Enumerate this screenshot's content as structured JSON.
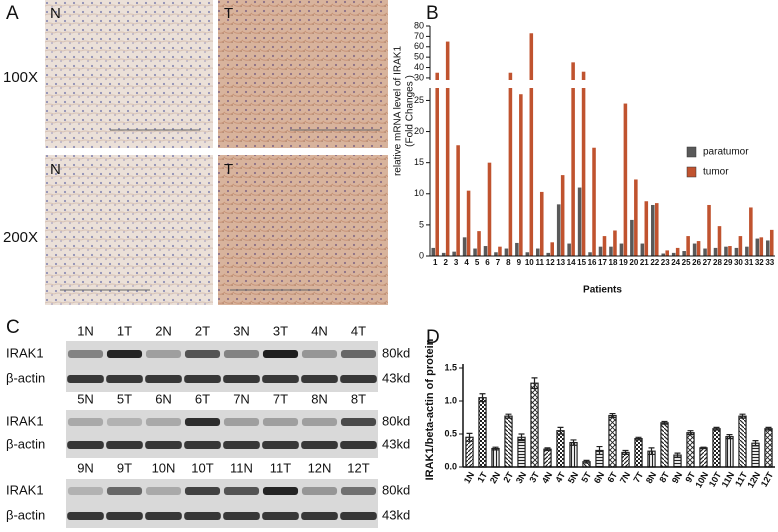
{
  "panel_labels": [
    "A",
    "B",
    "C",
    "D"
  ],
  "histology": {
    "rows": [
      {
        "label": "100X",
        "images": [
          "N",
          "T"
        ]
      },
      {
        "label": "200X",
        "images": [
          "N",
          "T"
        ]
      }
    ]
  },
  "western_blot": {
    "bands": [
      {
        "label": "IRAK1",
        "size": "80kd"
      },
      {
        "label": "β-actin",
        "size": "43kd"
      }
    ],
    "rows": [
      [
        "1N",
        "1T",
        "2N",
        "2T",
        "3N",
        "3T",
        "4N",
        "4T"
      ],
      [
        "5N",
        "5T",
        "6N",
        "6T",
        "7N",
        "7T",
        "8N",
        "8T"
      ],
      [
        "9N",
        "9T",
        "10N",
        "10T",
        "11N",
        "11T",
        "12N",
        "12T"
      ]
    ]
  },
  "chart_data": [
    {
      "type": "bar",
      "xlabel": "Patients",
      "ylabel": [
        "relative mRNA level of IRAK1",
        "(Fold Changes )"
      ],
      "categories": [
        "1",
        "2",
        "3",
        "4",
        "5",
        "6",
        "7",
        "8",
        "9",
        "10",
        "11",
        "12",
        "13",
        "14",
        "15",
        "16",
        "17",
        "18",
        "19",
        "20",
        "21",
        "22",
        "23",
        "24",
        "25",
        "26",
        "27",
        "28",
        "29",
        "30",
        "31",
        "32",
        "33"
      ],
      "series": [
        {
          "name": "paratumor",
          "color": "#595959",
          "values": [
            1.3,
            0.5,
            0.7,
            3.0,
            1.2,
            1.6,
            0.6,
            1.2,
            2.1,
            0.6,
            1.2,
            0.5,
            8.3,
            2.0,
            11.0,
            0.6,
            1.5,
            1.5,
            2.0,
            5.8,
            2.0,
            8.2,
            0.4,
            0.5,
            0.8,
            2.0,
            1.2,
            1.3,
            1.5,
            1.3,
            1.5,
            2.8,
            2.5
          ]
        },
        {
          "name": "tumor",
          "color": "#c0532f",
          "values": [
            35,
            65,
            17.8,
            10.5,
            4.0,
            15.0,
            1.5,
            35,
            26,
            73,
            10.3,
            2.2,
            13.0,
            45,
            36,
            17.4,
            3.2,
            4.1,
            24.5,
            12.3,
            8.8,
            8.5,
            0.9,
            1.3,
            3.2,
            2.4,
            8.2,
            4.8,
            1.6,
            3.2,
            7.8,
            3.0,
            4.2
          ]
        }
      ],
      "ylim": [
        0,
        80
      ],
      "yticks": [
        0,
        5,
        10,
        15,
        20,
        25,
        30,
        40,
        50,
        60,
        70,
        80
      ],
      "axis_break": [
        27,
        28
      ],
      "legend": "right"
    },
    {
      "type": "bar",
      "ylabel": "IRAK1/beta-actin of protein",
      "categories": [
        "1N",
        "1T",
        "2N",
        "2T",
        "3N",
        "3T",
        "4N",
        "4T",
        "5N",
        "5T",
        "6N",
        "6T",
        "7N",
        "7T",
        "8N",
        "8T",
        "9N",
        "9T",
        "10N",
        "10T",
        "11N",
        "11T",
        "12N",
        "12T"
      ],
      "values": [
        0.45,
        1.05,
        0.28,
        0.77,
        0.45,
        1.27,
        0.27,
        0.55,
        0.37,
        0.08,
        0.25,
        0.78,
        0.22,
        0.43,
        0.24,
        0.67,
        0.18,
        0.52,
        0.29,
        0.58,
        0.46,
        0.77,
        0.36,
        0.58
      ],
      "errors": [
        0.06,
        0.06,
        0.02,
        0.03,
        0.05,
        0.08,
        0.02,
        0.05,
        0.04,
        0.02,
        0.06,
        0.03,
        0.03,
        0.02,
        0.05,
        0.02,
        0.03,
        0.03,
        0.01,
        0.02,
        0.03,
        0.03,
        0.04,
        0.02
      ],
      "color": "#222222",
      "ylim": [
        0,
        1.5
      ],
      "yticks": [
        {
          "value": 0,
          "label": "0.0"
        },
        0.5,
        {
          "value": 1,
          "label": "1.0"
        },
        1.5
      ]
    }
  ]
}
